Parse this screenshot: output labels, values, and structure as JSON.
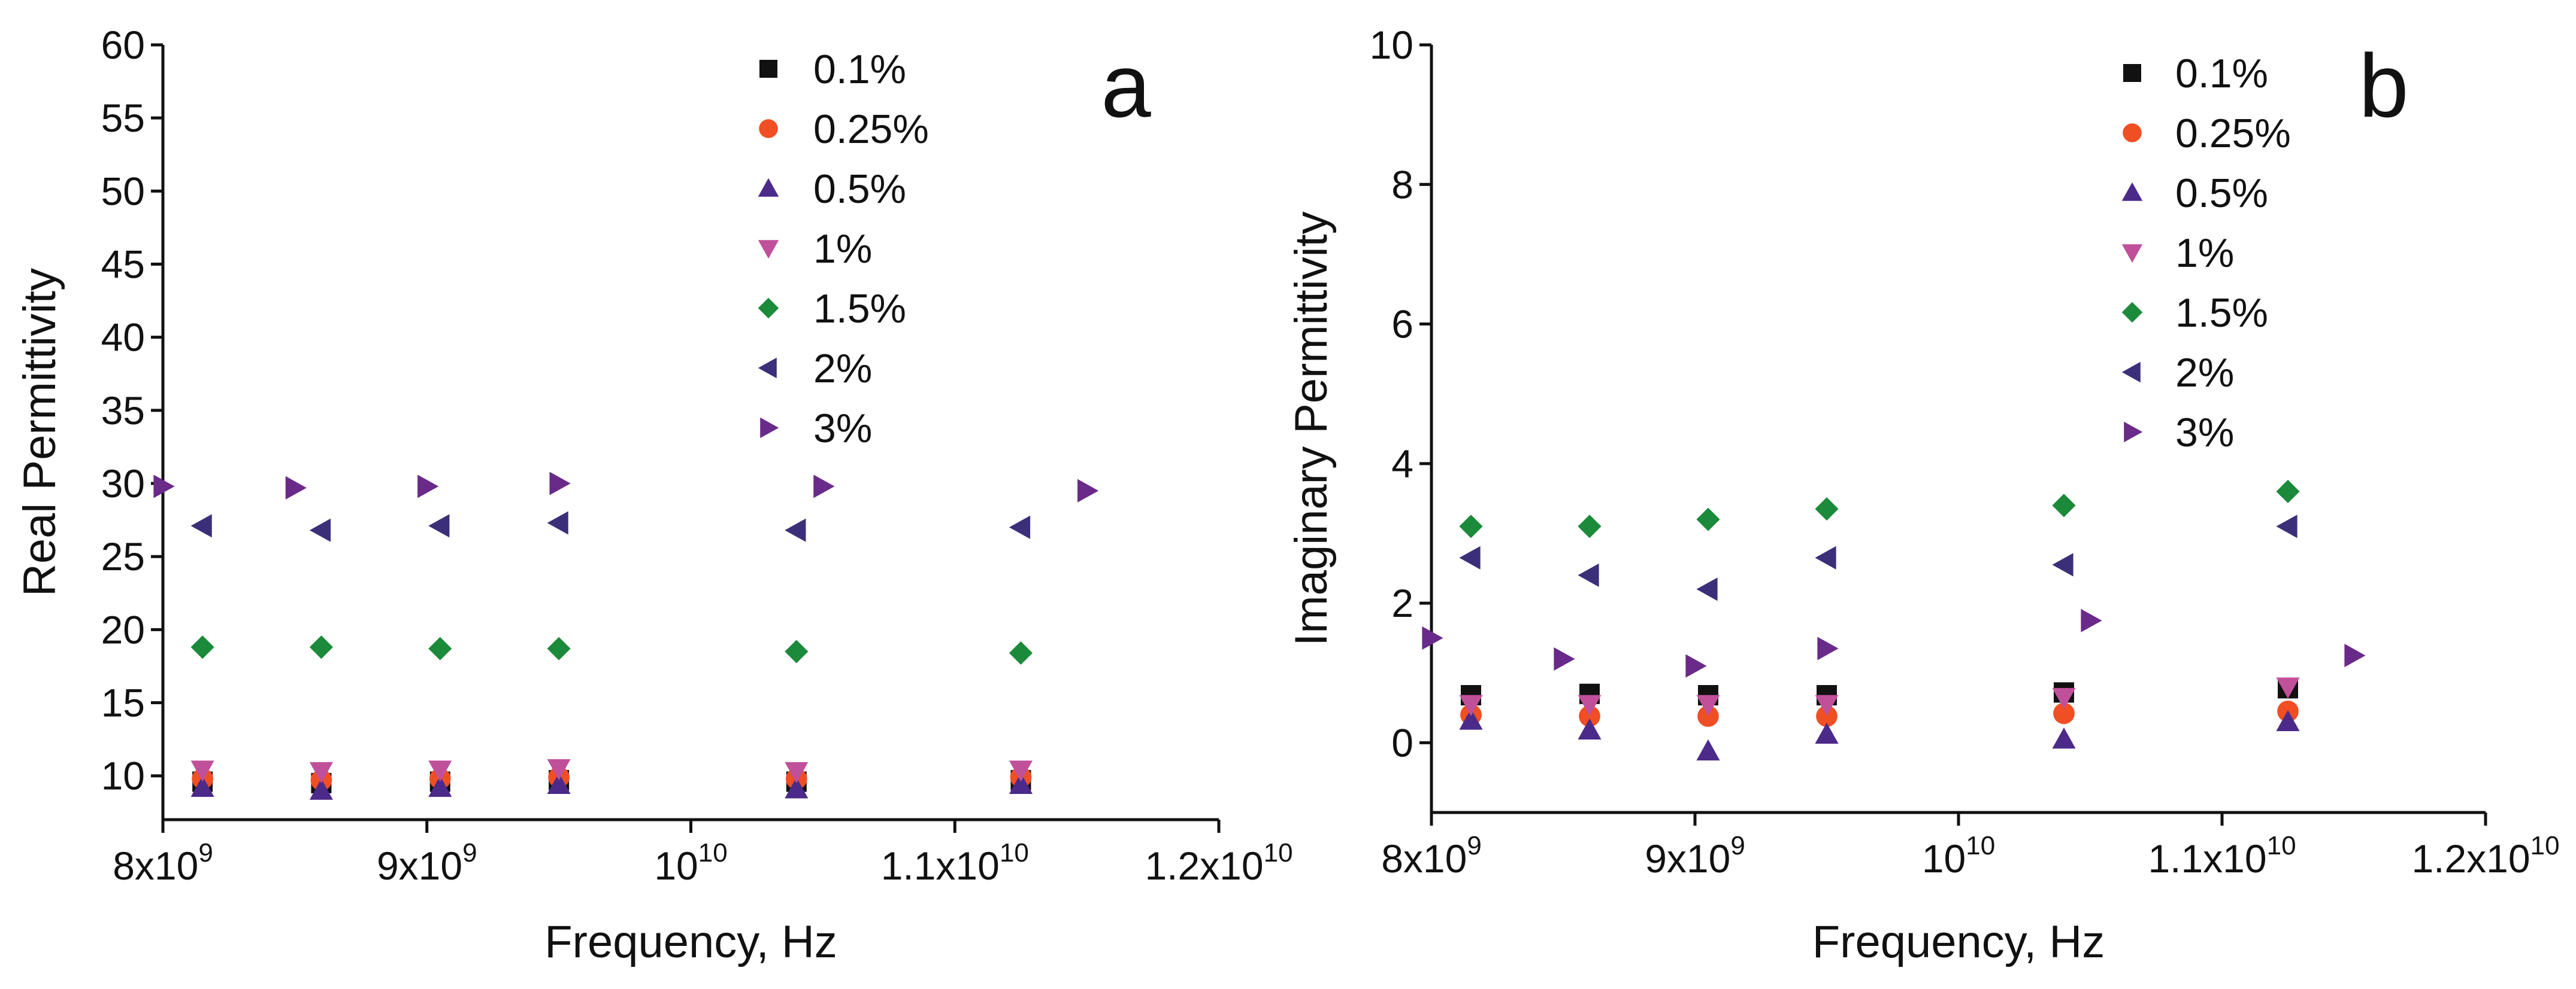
{
  "chart_data": [
    {
      "panel": "a",
      "type": "scatter",
      "title": "",
      "xlabel": "Frequency, Hz",
      "ylabel": "Real Permittivity",
      "xlim": [
        8000000000,
        12000000000
      ],
      "ylim": [
        7,
        60
      ],
      "legend_position": "top-center",
      "x_ticks": [
        {
          "value": 8000000000,
          "mantissa": "8x10",
          "exp": "9"
        },
        {
          "value": 9000000000,
          "mantissa": "9x10",
          "exp": "9"
        },
        {
          "value": 10000000000,
          "mantissa": "10",
          "exp": "10"
        },
        {
          "value": 11000000000,
          "mantissa": "1.1x10",
          "exp": "10"
        },
        {
          "value": 12000000000,
          "mantissa": "1.2x10",
          "exp": "10"
        }
      ],
      "y_ticks": [
        "10",
        "15",
        "20",
        "25",
        "30",
        "35",
        "40",
        "45",
        "50",
        "55",
        "60"
      ],
      "series": [
        {
          "name": "0.1%",
          "marker": "square",
          "color": "#111111",
          "x": [
            8150000000,
            8600000000,
            9050000000,
            9500000000,
            10400000000,
            11250000000
          ],
          "y": [
            9.6,
            9.5,
            9.6,
            9.7,
            9.6,
            9.7
          ]
        },
        {
          "name": "0.25%",
          "marker": "circle",
          "color": "#f04e23",
          "x": [
            8150000000,
            8600000000,
            9050000000,
            9500000000,
            10400000000,
            11250000000
          ],
          "y": [
            9.8,
            9.7,
            9.8,
            9.9,
            9.8,
            9.9
          ]
        },
        {
          "name": "0.5%",
          "marker": "triangle-up",
          "color": "#4b2a8a",
          "x": [
            8150000000,
            8600000000,
            9050000000,
            9500000000,
            10400000000,
            11250000000
          ],
          "y": [
            9.2,
            9.0,
            9.2,
            9.4,
            9.1,
            9.4
          ]
        },
        {
          "name": "1%",
          "marker": "triangle-down",
          "color": "#c0509a",
          "x": [
            8150000000,
            8600000000,
            9050000000,
            9500000000,
            10400000000,
            11250000000
          ],
          "y": [
            10.4,
            10.3,
            10.4,
            10.5,
            10.3,
            10.4
          ]
        },
        {
          "name": "1.5%",
          "marker": "diamond",
          "color": "#1b8a3a",
          "x": [
            8150000000,
            8600000000,
            9050000000,
            9500000000,
            10400000000,
            11250000000
          ],
          "y": [
            18.8,
            18.8,
            18.7,
            18.7,
            18.5,
            18.4
          ]
        },
        {
          "name": "2%",
          "marker": "triangle-left",
          "color": "#3b2f7a",
          "x": [
            8150000000,
            8600000000,
            9050000000,
            9500000000,
            10400000000,
            11250000000
          ],
          "y": [
            27.1,
            26.8,
            27.1,
            27.3,
            26.8,
            27.0
          ]
        },
        {
          "name": "3%",
          "marker": "triangle-right",
          "color": "#6a2a8a",
          "x": [
            8000000000,
            8500000000,
            9000000000,
            9500000000,
            10500000000,
            11500000000
          ],
          "y": [
            29.8,
            29.7,
            29.8,
            30.0,
            29.8,
            29.5
          ]
        }
      ]
    },
    {
      "panel": "b",
      "type": "scatter",
      "title": "",
      "xlabel": "Frequency, Hz",
      "ylabel": "Imaginary Permittivity",
      "xlim": [
        8000000000,
        12000000000
      ],
      "ylim": [
        -1,
        10
      ],
      "legend_position": "top-center",
      "x_ticks": [
        {
          "value": 8000000000,
          "mantissa": "8x10",
          "exp": "9"
        },
        {
          "value": 9000000000,
          "mantissa": "9x10",
          "exp": "9"
        },
        {
          "value": 10000000000,
          "mantissa": "10",
          "exp": "10"
        },
        {
          "value": 11000000000,
          "mantissa": "1.1x10",
          "exp": "10"
        },
        {
          "value": 12000000000,
          "mantissa": "1.2x10",
          "exp": "10"
        }
      ],
      "y_ticks": [
        "0",
        "2",
        "4",
        "6",
        "8",
        "10"
      ],
      "series": [
        {
          "name": "0.1%",
          "marker": "square",
          "color": "#111111",
          "x": [
            8150000000,
            8600000000,
            9050000000,
            9500000000,
            10400000000,
            11250000000
          ],
          "y": [
            0.68,
            0.7,
            0.68,
            0.68,
            0.72,
            0.78
          ]
        },
        {
          "name": "0.25%",
          "marker": "circle",
          "color": "#f04e23",
          "x": [
            8150000000,
            8600000000,
            9050000000,
            9500000000,
            10400000000,
            11250000000
          ],
          "y": [
            0.4,
            0.38,
            0.38,
            0.38,
            0.42,
            0.45
          ]
        },
        {
          "name": "0.5%",
          "marker": "triangle-up",
          "color": "#4b2a8a",
          "x": [
            8150000000,
            8600000000,
            9050000000,
            9500000000,
            10400000000,
            11250000000
          ],
          "y": [
            0.32,
            0.18,
            -0.12,
            0.12,
            0.05,
            0.3
          ]
        },
        {
          "name": "1%",
          "marker": "triangle-down",
          "color": "#c0509a",
          "x": [
            8150000000,
            8600000000,
            9050000000,
            9500000000,
            10400000000,
            11250000000
          ],
          "y": [
            0.55,
            0.55,
            0.55,
            0.55,
            0.65,
            0.8
          ]
        },
        {
          "name": "1.5%",
          "marker": "diamond",
          "color": "#1b8a3a",
          "x": [
            8150000000,
            8600000000,
            9050000000,
            9500000000,
            10400000000,
            11250000000
          ],
          "y": [
            3.1,
            3.1,
            3.2,
            3.35,
            3.4,
            3.6
          ]
        },
        {
          "name": "2%",
          "marker": "triangle-left",
          "color": "#3b2f7a",
          "x": [
            8150000000,
            8600000000,
            9050000000,
            9500000000,
            10400000000,
            11250000000
          ],
          "y": [
            2.65,
            2.4,
            2.2,
            2.65,
            2.55,
            3.1
          ]
        },
        {
          "name": "3%",
          "marker": "triangle-right",
          "color": "#6a2a8a",
          "x": [
            8000000000,
            8500000000,
            9000000000,
            9500000000,
            10500000000,
            11500000000
          ],
          "y": [
            1.5,
            1.2,
            1.1,
            1.35,
            1.75,
            1.25
          ]
        }
      ]
    }
  ]
}
